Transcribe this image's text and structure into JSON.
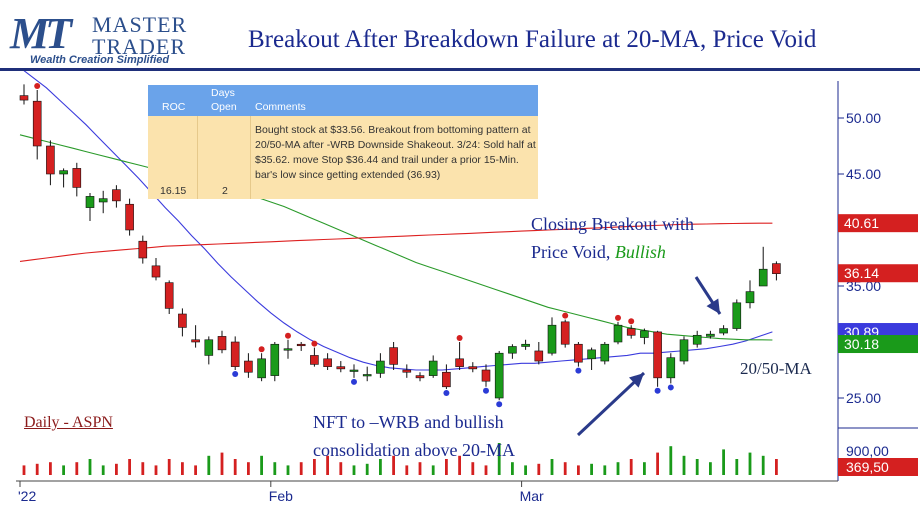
{
  "header": {
    "title": "Breakout After Breakdown Failure at 20-MA, Price Void",
    "logo_line1": "MASTER",
    "logo_line2": "TRADER",
    "logo_tagline": "Wealth Creation Simplified",
    "logo_mark": "MT"
  },
  "trade_table": {
    "columns": [
      "ROC",
      "Days",
      "Open",
      "Comments"
    ],
    "roc": "16.15",
    "days_open": "2",
    "comment": "Bought stock at $33.56. Breakout from bottoming pattern at 20/50-MA after -WRB Downside Shakeout. 3/24: Sold half at $35.62. move Stop $36.44 and trail under a prior 15-Min. bar's low since getting extended (36.93)"
  },
  "annotations": {
    "breakout_line1": "Closing Breakout with",
    "breakout_line2": "Price Void,",
    "breakout_word": "Bullish",
    "nft_line1": "NFT to –WRB and bullish",
    "nft_line2": "consolidation above 20-MA",
    "ma_label": "20/50-MA",
    "ticker_label": "Daily - ASPN"
  },
  "colors": {
    "up": "#1a9a1a",
    "down": "#d42020",
    "ma_fast": "#3b3bdd",
    "ma_slow": "#2a9a2a",
    "ma_long": "#dd2020",
    "axis": "#1b2a8f",
    "title": "#1b2a8f"
  },
  "chart_data": {
    "type": "candlestick",
    "title": "",
    "xlabel": "",
    "ylabel": "",
    "ylim": [
      22,
      55
    ],
    "yticks": [
      {
        "value": 50,
        "label": "50.00"
      },
      {
        "value": 45,
        "label": "45.00"
      },
      {
        "value": 35,
        "label": "35.00"
      },
      {
        "value": 25,
        "label": "25.00"
      }
    ],
    "xticks": [
      {
        "index": 0,
        "label": "'22"
      },
      {
        "index": 19,
        "label": "Feb"
      },
      {
        "index": 38,
        "label": "Mar"
      }
    ],
    "price_labels": [
      {
        "value": 40.61,
        "label": "40.61",
        "color": "#d42020"
      },
      {
        "value": 36.14,
        "label": "36.14",
        "color": "#d42020"
      },
      {
        "value": 30.89,
        "label": "30.89",
        "color": "#3b3bdd"
      },
      {
        "value": 30.18,
        "label": "30.18",
        "color": "#1a9a1a"
      }
    ],
    "volume_labels": [
      {
        "label": "900,00",
        "color": "#ffffff"
      },
      {
        "label": "369,50",
        "color": "#d42020"
      }
    ],
    "candles": [
      {
        "o": 52.0,
        "h": 53.0,
        "l": 51.2,
        "c": 51.6
      },
      {
        "o": 51.5,
        "h": 52.5,
        "l": 46.3,
        "c": 47.5
      },
      {
        "o": 47.5,
        "h": 48.0,
        "l": 44.0,
        "c": 45.0
      },
      {
        "o": 45.0,
        "h": 45.5,
        "l": 43.8,
        "c": 45.3
      },
      {
        "o": 45.5,
        "h": 46.0,
        "l": 43.0,
        "c": 43.8
      },
      {
        "o": 42.0,
        "h": 43.3,
        "l": 40.8,
        "c": 43.0
      },
      {
        "o": 42.5,
        "h": 43.5,
        "l": 41.5,
        "c": 42.8
      },
      {
        "o": 43.6,
        "h": 44.0,
        "l": 42.0,
        "c": 42.6
      },
      {
        "o": 42.3,
        "h": 42.8,
        "l": 39.5,
        "c": 40.0
      },
      {
        "o": 39.0,
        "h": 39.5,
        "l": 37.0,
        "c": 37.5
      },
      {
        "o": 36.8,
        "h": 37.5,
        "l": 35.5,
        "c": 35.8
      },
      {
        "o": 35.3,
        "h": 35.5,
        "l": 32.5,
        "c": 33.0
      },
      {
        "o": 32.5,
        "h": 33.0,
        "l": 30.5,
        "c": 31.3
      },
      {
        "o": 30.2,
        "h": 31.5,
        "l": 29.5,
        "c": 30.0
      },
      {
        "o": 28.8,
        "h": 30.5,
        "l": 28.0,
        "c": 30.2
      },
      {
        "o": 30.5,
        "h": 31.0,
        "l": 29.0,
        "c": 29.3
      },
      {
        "o": 30.0,
        "h": 30.5,
        "l": 27.5,
        "c": 27.8
      },
      {
        "o": 28.3,
        "h": 29.0,
        "l": 26.8,
        "c": 27.3
      },
      {
        "o": 26.8,
        "h": 29.0,
        "l": 26.5,
        "c": 28.5
      },
      {
        "o": 27.0,
        "h": 30.0,
        "l": 26.5,
        "c": 29.8
      },
      {
        "o": 29.3,
        "h": 30.2,
        "l": 28.5,
        "c": 29.4
      },
      {
        "o": 29.8,
        "h": 30.0,
        "l": 29.2,
        "c": 29.7
      },
      {
        "o": 28.8,
        "h": 29.5,
        "l": 27.8,
        "c": 28.0
      },
      {
        "o": 28.5,
        "h": 29.0,
        "l": 27.5,
        "c": 27.8
      },
      {
        "o": 27.8,
        "h": 28.3,
        "l": 27.3,
        "c": 27.6
      },
      {
        "o": 27.5,
        "h": 28.0,
        "l": 26.8,
        "c": 27.5
      },
      {
        "o": 27.0,
        "h": 27.8,
        "l": 26.5,
        "c": 27.1
      },
      {
        "o": 27.2,
        "h": 29.0,
        "l": 26.8,
        "c": 28.3
      },
      {
        "o": 29.5,
        "h": 30.0,
        "l": 27.5,
        "c": 28.0
      },
      {
        "o": 27.5,
        "h": 28.0,
        "l": 26.8,
        "c": 27.3
      },
      {
        "o": 27.0,
        "h": 27.3,
        "l": 26.5,
        "c": 26.8
      },
      {
        "o": 27.0,
        "h": 28.8,
        "l": 26.8,
        "c": 28.3
      },
      {
        "o": 27.3,
        "h": 28.0,
        "l": 25.8,
        "c": 26.0
      },
      {
        "o": 28.5,
        "h": 30.0,
        "l": 27.5,
        "c": 27.8
      },
      {
        "o": 27.8,
        "h": 28.2,
        "l": 27.3,
        "c": 27.6
      },
      {
        "o": 27.5,
        "h": 28.0,
        "l": 26.0,
        "c": 26.5
      },
      {
        "o": 25.0,
        "h": 29.2,
        "l": 24.8,
        "c": 29.0
      },
      {
        "o": 29.0,
        "h": 29.8,
        "l": 28.5,
        "c": 29.6
      },
      {
        "o": 29.6,
        "h": 30.2,
        "l": 29.3,
        "c": 29.8
      },
      {
        "o": 29.2,
        "h": 30.0,
        "l": 28.0,
        "c": 28.3
      },
      {
        "o": 29.0,
        "h": 32.2,
        "l": 28.8,
        "c": 31.5
      },
      {
        "o": 31.8,
        "h": 32.0,
        "l": 29.5,
        "c": 29.8
      },
      {
        "o": 29.8,
        "h": 30.0,
        "l": 27.8,
        "c": 28.2
      },
      {
        "o": 28.5,
        "h": 29.5,
        "l": 27.5,
        "c": 29.3
      },
      {
        "o": 28.3,
        "h": 30.0,
        "l": 28.0,
        "c": 29.8
      },
      {
        "o": 30.0,
        "h": 31.8,
        "l": 29.8,
        "c": 31.5
      },
      {
        "o": 31.2,
        "h": 31.5,
        "l": 30.3,
        "c": 30.6
      },
      {
        "o": 30.4,
        "h": 31.2,
        "l": 29.8,
        "c": 31.0
      },
      {
        "o": 30.9,
        "h": 31.0,
        "l": 26.0,
        "c": 26.8
      },
      {
        "o": 26.8,
        "h": 29.0,
        "l": 26.3,
        "c": 28.6
      },
      {
        "o": 28.3,
        "h": 30.5,
        "l": 28.0,
        "c": 30.2
      },
      {
        "o": 29.8,
        "h": 31.0,
        "l": 29.5,
        "c": 30.6
      },
      {
        "o": 30.5,
        "h": 31.0,
        "l": 30.3,
        "c": 30.7
      },
      {
        "o": 30.8,
        "h": 31.5,
        "l": 30.6,
        "c": 31.2
      },
      {
        "o": 31.2,
        "h": 33.8,
        "l": 31.0,
        "c": 33.5
      },
      {
        "o": 33.5,
        "h": 35.5,
        "l": 33.0,
        "c": 34.5
      },
      {
        "o": 35.0,
        "h": 38.5,
        "l": 35.0,
        "c": 36.5
      },
      {
        "o": 37.0,
        "h": 37.2,
        "l": 35.5,
        "c": 36.1
      }
    ],
    "series": [
      {
        "name": "",
        "values": [
          54.5,
          53.6,
          52.7,
          51.6,
          50.5,
          49.4,
          48.2,
          47.0,
          45.8,
          44.6,
          43.3,
          42.0,
          40.8,
          39.5,
          38.3,
          37.0,
          35.8,
          34.7,
          33.6,
          32.6,
          31.7,
          30.9,
          30.2,
          29.6,
          29.1,
          28.6,
          28.2,
          27.9,
          27.7,
          27.6,
          27.5,
          27.5,
          27.5,
          27.6,
          27.7,
          27.8,
          27.9,
          28.0,
          28.1,
          28.1,
          28.2,
          28.3,
          28.4,
          28.5,
          28.6,
          28.7,
          28.8,
          29.0,
          29.0,
          29.1,
          29.2,
          29.3,
          29.4,
          29.6,
          29.8,
          30.1,
          30.5,
          30.9
        ]
      },
      {
        "name": "",
        "values": [
          48.5,
          48.2,
          47.9,
          47.6,
          47.3,
          47.0,
          46.7,
          46.4,
          46.1,
          45.8,
          45.5,
          45.2,
          44.8,
          44.5,
          44.2,
          43.9,
          43.6,
          43.3,
          42.9,
          42.5,
          42.1,
          41.6,
          41.1,
          40.6,
          40.1,
          39.6,
          39.1,
          38.6,
          38.1,
          37.6,
          37.1,
          36.7,
          36.3,
          35.9,
          35.5,
          35.1,
          34.7,
          34.3,
          33.9,
          33.5,
          33.1,
          32.8,
          32.5,
          32.2,
          31.9,
          31.6,
          31.3,
          31.1,
          30.9,
          30.7,
          30.6,
          30.5,
          30.4,
          30.3,
          30.25,
          30.2,
          30.2,
          30.18
        ]
      },
      {
        "name": "",
        "values": [
          37.2,
          37.35,
          37.5,
          37.65,
          37.8,
          37.95,
          38.05,
          38.15,
          38.25,
          38.35,
          38.45,
          38.55,
          38.6,
          38.65,
          38.7,
          38.75,
          38.8,
          38.85,
          38.9,
          38.95,
          39.0,
          39.05,
          39.1,
          39.15,
          39.2,
          39.25,
          39.3,
          39.35,
          39.4,
          39.45,
          39.5,
          39.55,
          39.6,
          39.65,
          39.7,
          39.75,
          39.8,
          39.85,
          39.9,
          39.95,
          40.0,
          40.05,
          40.1,
          40.15,
          40.2,
          40.25,
          40.3,
          40.35,
          40.4,
          40.45,
          40.5,
          40.52,
          40.54,
          40.56,
          40.58,
          40.6,
          40.61,
          40.61
        ]
      }
    ],
    "volume": [
      0.3,
      0.35,
      0.4,
      0.3,
      0.4,
      0.5,
      0.3,
      0.35,
      0.5,
      0.4,
      0.3,
      0.5,
      0.4,
      0.3,
      0.6,
      0.7,
      0.5,
      0.4,
      0.6,
      0.4,
      0.3,
      0.4,
      0.5,
      0.6,
      0.4,
      0.3,
      0.35,
      0.5,
      0.6,
      0.3,
      0.4,
      0.3,
      0.5,
      0.6,
      0.4,
      0.3,
      1.0,
      0.4,
      0.3,
      0.35,
      0.5,
      0.4,
      0.3,
      0.35,
      0.3,
      0.4,
      0.5,
      0.4,
      0.7,
      0.9,
      0.6,
      0.5,
      0.4,
      0.8,
      0.5,
      0.7,
      0.6,
      0.5
    ],
    "markers": [
      {
        "index": 1,
        "position": "top",
        "color": "#d42020"
      },
      {
        "index": 16,
        "position": "bottom",
        "color": "#2b3bd6"
      },
      {
        "index": 18,
        "position": "top",
        "color": "#d42020"
      },
      {
        "index": 20,
        "position": "top",
        "color": "#d42020"
      },
      {
        "index": 22,
        "position": "top",
        "color": "#d42020"
      },
      {
        "index": 25,
        "position": "bottom",
        "color": "#2b3bd6"
      },
      {
        "index": 32,
        "position": "bottom",
        "color": "#2b3bd6"
      },
      {
        "index": 33,
        "position": "top",
        "color": "#d42020"
      },
      {
        "index": 35,
        "position": "bottom",
        "color": "#2b3bd6"
      },
      {
        "index": 36,
        "position": "bottom",
        "color": "#2b3bd6"
      },
      {
        "index": 41,
        "position": "top",
        "color": "#d42020"
      },
      {
        "index": 42,
        "position": "bottom",
        "color": "#2b3bd6"
      },
      {
        "index": 45,
        "position": "top",
        "color": "#d42020"
      },
      {
        "index": 46,
        "position": "top",
        "color": "#d42020"
      },
      {
        "index": 48,
        "position": "bottom",
        "color": "#2b3bd6"
      },
      {
        "index": 49,
        "position": "bottom",
        "color": "#2b3bd6"
      }
    ]
  }
}
